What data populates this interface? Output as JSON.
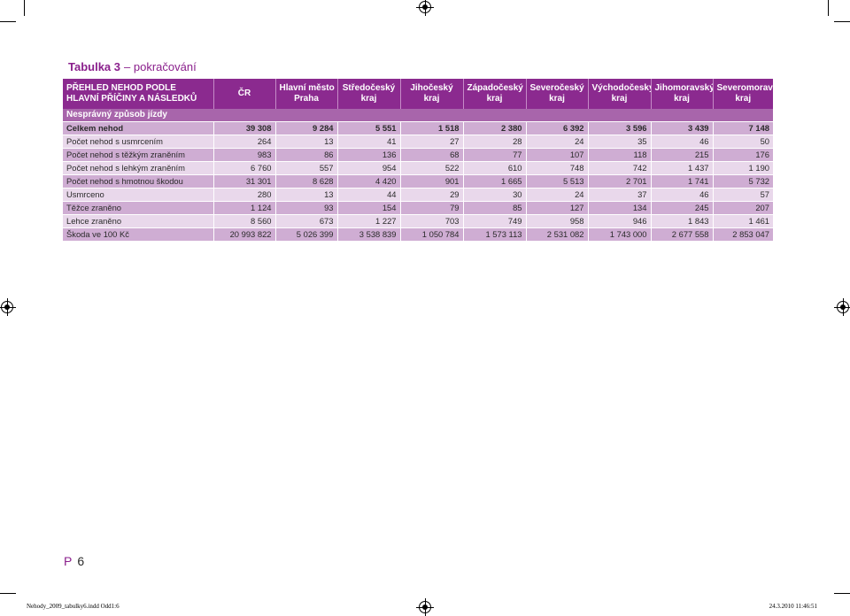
{
  "title": {
    "bold": "Tabulka 3",
    "rest": "– pokračování"
  },
  "table": {
    "header_first": [
      "PŘEHLED NEHOD PODLE",
      "HLAVNÍ PŘÍČINY A NÁSLEDKŮ"
    ],
    "headers": [
      [
        "ČR",
        ""
      ],
      [
        "Hlavní město",
        "Praha"
      ],
      [
        "Středočeský",
        "kraj"
      ],
      [
        "Jihočeský",
        "kraj"
      ],
      [
        "Západočeský",
        "kraj"
      ],
      [
        "Severočeský",
        "kraj"
      ],
      [
        "Východočeský",
        "kraj"
      ],
      [
        "Jihomoravský",
        "kraj"
      ],
      [
        "Severomoravský",
        "kraj"
      ]
    ],
    "section": "Nesprávný způsob jízdy",
    "rows": [
      {
        "label": "Celkem nehod",
        "values": [
          "39 308",
          "9 284",
          "5 551",
          "1 518",
          "2 380",
          "6 392",
          "3 596",
          "3 439",
          "7 148"
        ]
      },
      {
        "label": "Počet nehod s usmrcením",
        "values": [
          "264",
          "13",
          "41",
          "27",
          "28",
          "24",
          "35",
          "46",
          "50"
        ]
      },
      {
        "label": "Počet nehod s těžkým zraněním",
        "values": [
          "983",
          "86",
          "136",
          "68",
          "77",
          "107",
          "118",
          "215",
          "176"
        ]
      },
      {
        "label": "Počet nehod s lehkým zraněním",
        "values": [
          "6 760",
          "557",
          "954",
          "522",
          "610",
          "748",
          "742",
          "1 437",
          "1 190"
        ]
      },
      {
        "label": "Počet nehod s hmotnou škodou",
        "values": [
          "31 301",
          "8 628",
          "4 420",
          "901",
          "1 665",
          "5 513",
          "2 701",
          "1 741",
          "5 732"
        ]
      },
      {
        "label": "Usmrceno",
        "values": [
          "280",
          "13",
          "44",
          "29",
          "30",
          "24",
          "37",
          "46",
          "57"
        ]
      },
      {
        "label": "Těžce zraněno",
        "values": [
          "1 124",
          "93",
          "154",
          "79",
          "85",
          "127",
          "134",
          "245",
          "207"
        ]
      },
      {
        "label": "Lehce zraněno",
        "values": [
          "8 560",
          "673",
          "1 227",
          "703",
          "749",
          "958",
          "946",
          "1 843",
          "1 461"
        ]
      },
      {
        "label": "Škoda ve 100 Kč",
        "values": [
          "20 993 822",
          "5 026 399",
          "3 538 839",
          "1 050 784",
          "1 573 113",
          "2 531 082",
          "1 743 000",
          "2 677 558",
          "2 853 047"
        ]
      }
    ]
  },
  "page": {
    "prefix": "P",
    "number": "6"
  },
  "slug": {
    "file": "Nehody_2009_tabulky6.indd Odd1:6",
    "date": "24.3.2010 11:46:51"
  },
  "colors": {
    "accent": "#8a1f8c",
    "header_bg": "#8b2a8f",
    "section_bg": "#a865ab",
    "row_dark": "#cfadd3",
    "row_light": "#e9d8eb"
  }
}
